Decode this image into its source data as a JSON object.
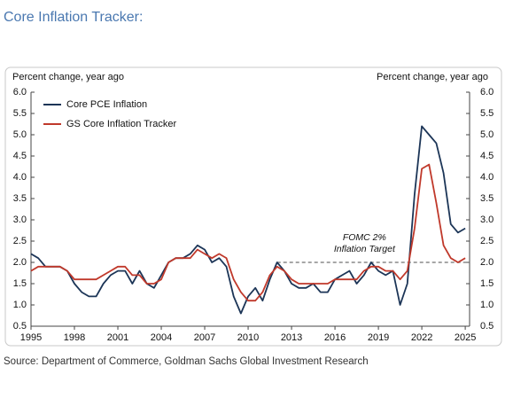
{
  "chart_data": {
    "type": "line",
    "title": "Core Inflation Tracker:",
    "ylabel": "Percent change, year ago",
    "y2label": "Percent change, year ago",
    "source": "Source: Department of Commerce, Goldman Sachs Global Investment Research",
    "legend": "top-left",
    "x": [
      1995,
      1995.5,
      1996,
      1996.5,
      1997,
      1997.5,
      1998,
      1998.5,
      1999,
      1999.5,
      2000,
      2000.5,
      2001,
      2001.5,
      2002,
      2002.5,
      2003,
      2003.5,
      2004,
      2004.5,
      2005,
      2005.5,
      2006,
      2006.5,
      2007,
      2007.5,
      2008,
      2008.5,
      2009,
      2009.5,
      2010,
      2010.5,
      2011,
      2011.5,
      2012,
      2012.5,
      2013,
      2013.5,
      2014,
      2014.5,
      2015,
      2015.5,
      2016,
      2016.5,
      2017,
      2017.5,
      2018,
      2018.5,
      2019,
      2019.5,
      2020,
      2020.5,
      2021,
      2021.5,
      2022,
      2022.5,
      2023,
      2023.5,
      2024,
      2024.5,
      2025
    ],
    "series": [
      {
        "name": "Core PCE Inflation",
        "color": "#1c3557",
        "values": [
          2.2,
          2.1,
          1.9,
          1.9,
          1.9,
          1.8,
          1.5,
          1.3,
          1.2,
          1.2,
          1.5,
          1.7,
          1.8,
          1.8,
          1.5,
          1.8,
          1.5,
          1.4,
          1.7,
          2.0,
          2.1,
          2.1,
          2.2,
          2.4,
          2.3,
          2.0,
          2.1,
          1.9,
          1.2,
          0.8,
          1.2,
          1.4,
          1.1,
          1.6,
          2.0,
          1.8,
          1.5,
          1.4,
          1.4,
          1.5,
          1.3,
          1.3,
          1.6,
          1.7,
          1.8,
          1.5,
          1.7,
          2.0,
          1.8,
          1.7,
          1.8,
          1.0,
          1.5,
          3.6,
          5.2,
          5.0,
          4.8,
          4.1,
          2.9,
          2.7,
          2.8
        ]
      },
      {
        "name": "GS Core Inflation Tracker",
        "color": "#c0392b",
        "values": [
          1.8,
          1.9,
          1.9,
          1.9,
          1.9,
          1.8,
          1.6,
          1.6,
          1.6,
          1.6,
          1.7,
          1.8,
          1.9,
          1.9,
          1.7,
          1.7,
          1.5,
          1.5,
          1.6,
          2.0,
          2.1,
          2.1,
          2.1,
          2.3,
          2.2,
          2.1,
          2.2,
          2.1,
          1.6,
          1.3,
          1.1,
          1.1,
          1.3,
          1.7,
          1.9,
          1.8,
          1.6,
          1.5,
          1.5,
          1.5,
          1.5,
          1.5,
          1.6,
          1.6,
          1.6,
          1.6,
          1.8,
          1.9,
          1.9,
          1.8,
          1.8,
          1.6,
          1.8,
          2.8,
          4.2,
          4.3,
          3.4,
          2.4,
          2.1,
          2.0,
          2.1
        ]
      }
    ],
    "reference_line": {
      "value": 2,
      "x": [
        2012,
        2025.3
      ],
      "label": [
        "FOMC 2%",
        "Inflation Target"
      ],
      "color": "#888888"
    },
    "xlim": [
      1995,
      2025.3
    ],
    "xticks": [
      1995,
      1998,
      2001,
      2004,
      2007,
      2010,
      2013,
      2016,
      2019,
      2022,
      2025
    ],
    "ylim": [
      0.5,
      6
    ],
    "yticks": [
      {
        "value": 0.5,
        "label": "0.5"
      },
      {
        "value": 1,
        "label": "1.0"
      },
      {
        "value": 1.5,
        "label": "1.5"
      },
      {
        "value": 2,
        "label": "2.0"
      },
      {
        "value": 2.5,
        "label": "2.5"
      },
      {
        "value": 3,
        "label": "3.0"
      },
      {
        "value": 3.5,
        "label": "3.5"
      },
      {
        "value": 4,
        "label": "4.0"
      },
      {
        "value": 4.5,
        "label": "4.5"
      },
      {
        "value": 5,
        "label": "5.0"
      },
      {
        "value": 5.5,
        "label": "5.5"
      },
      {
        "value": 6,
        "label": "6.0"
      }
    ],
    "y2lim": [
      0.5,
      6
    ],
    "y2ticks": [
      {
        "value": 0.5,
        "label": "0.5"
      },
      {
        "value": 1,
        "label": "1.0"
      },
      {
        "value": 1.5,
        "label": "1.5"
      },
      {
        "value": 2,
        "label": "2.0"
      },
      {
        "value": 2.5,
        "label": "2.5"
      },
      {
        "value": 3,
        "label": "3.0"
      },
      {
        "value": 3.5,
        "label": "3.5"
      },
      {
        "value": 4,
        "label": "4.0"
      },
      {
        "value": 4.5,
        "label": "4.5"
      },
      {
        "value": 5,
        "label": "5.0"
      },
      {
        "value": 5.5,
        "label": "5.5"
      },
      {
        "value": 6,
        "label": "6.0"
      }
    ]
  }
}
